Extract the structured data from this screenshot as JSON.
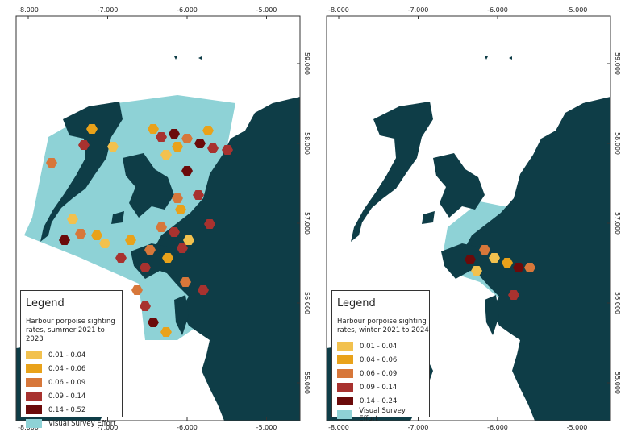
{
  "maps": [
    {
      "x_ticks": [
        "-8.000",
        "-7.000",
        "-6.000",
        "-5.000"
      ],
      "y_ticks": [
        "59.000",
        "58.000",
        "57.000",
        "56.000",
        "55.000"
      ],
      "legend": {
        "title": "Legend",
        "subtitle": "Harbour porpoise sighting rates, summer 2021 to 2023",
        "items": [
          {
            "label": "0.01 - 0.04",
            "color": "#f2c14e"
          },
          {
            "label": "0.04 - 0.06",
            "color": "#e9a21a"
          },
          {
            "label": "0.06 - 0.09",
            "color": "#d7773a"
          },
          {
            "label": "0.09 - 0.14",
            "color": "#a8322f"
          },
          {
            "label": "0.14 - 0.52",
            "color": "#6b0a0a"
          },
          {
            "label": "Visual Survey Effort",
            "color": "#8ed2d6"
          }
        ]
      }
    },
    {
      "x_ticks": [
        "-8.000",
        "-7.000",
        "-6.000",
        "-5.000"
      ],
      "y_ticks": [
        "59.000",
        "58.000",
        "57.000",
        "56.000",
        "55.000"
      ],
      "legend": {
        "title": "Legend",
        "subtitle": "Harbour porpoise sighting rates, winter 2021 to 2024",
        "items": [
          {
            "label": "0.01 - 0.04",
            "color": "#f2c14e"
          },
          {
            "label": "0.04 - 0.06",
            "color": "#e9a21a"
          },
          {
            "label": "0.06 - 0.09",
            "color": "#d7773a"
          },
          {
            "label": "0.09 - 0.14",
            "color": "#a8322f"
          },
          {
            "label": "0.14 - 0.24",
            "color": "#6b0a0a"
          },
          {
            "label": "Visual Survey Effort",
            "color": "#8ed2d6"
          }
        ]
      }
    }
  ]
}
